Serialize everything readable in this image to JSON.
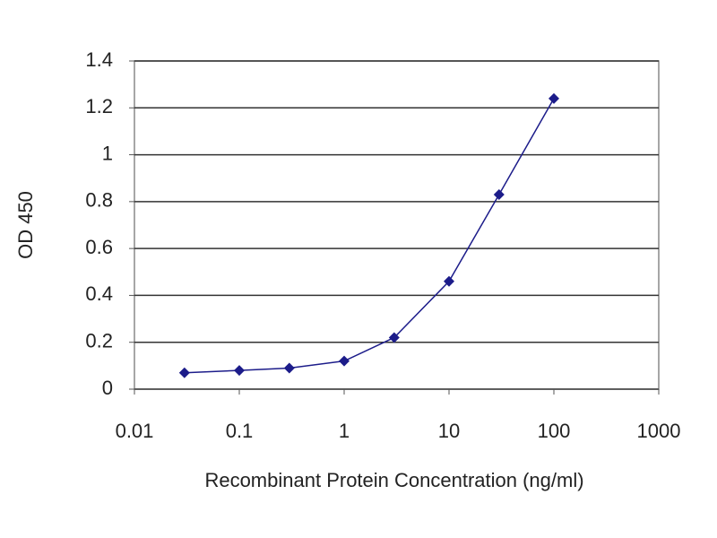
{
  "chart_data": {
    "type": "line",
    "x_label": "Recombinant Protein Concentration (ng/ml)",
    "y_label": "OD 450",
    "x": [
      0.03,
      0.1,
      0.3,
      1,
      3,
      10,
      30,
      100
    ],
    "series": [
      {
        "color": "#1c1c8a",
        "values": [
          0.07,
          0.08,
          0.09,
          0.12,
          0.22,
          0.46,
          0.83,
          1.24
        ]
      }
    ],
    "xscale": "log",
    "xlim": [
      0.01,
      1000
    ],
    "xticks": [
      0.01,
      0.1,
      1,
      10,
      100,
      1000
    ],
    "ylim": [
      0,
      1.4
    ],
    "yticks": [
      0,
      0.2,
      0.4,
      0.6,
      0.8,
      1,
      1.2,
      1.4
    ],
    "grid": true
  }
}
